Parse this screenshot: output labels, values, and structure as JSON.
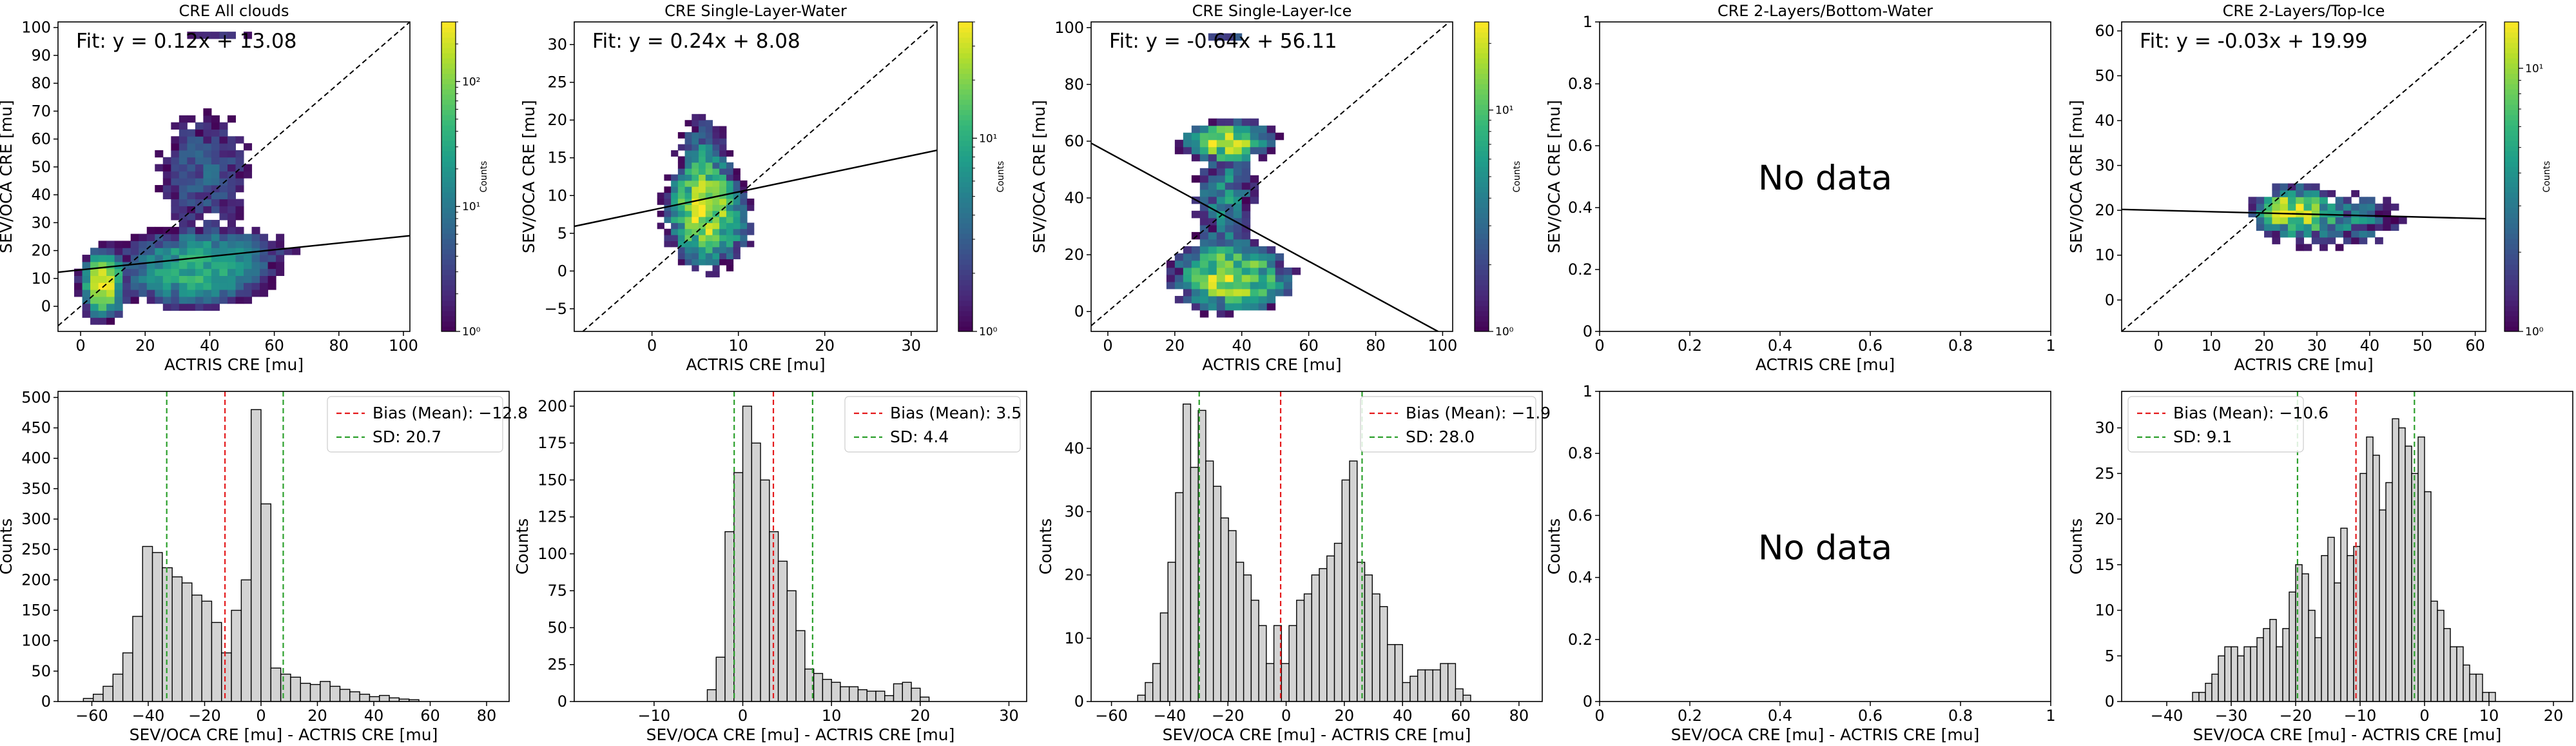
{
  "colormap": [
    "#440154",
    "#482878",
    "#3e4989",
    "#31688e",
    "#26828e",
    "#1f9e89",
    "#35b779",
    "#6ece58",
    "#b5de2b",
    "#fde725"
  ],
  "colorbar_label": "Counts",
  "legend": {
    "bias_prefix": "Bias (Mean): ",
    "sd_prefix": "SD: "
  },
  "no_data_text": "No data",
  "chart_data": [
    {
      "type": "heatmap",
      "title": "CRE All clouds",
      "xlabel": "ACTRIS CRE [mu]",
      "ylabel": "SEV/OCA CRE [mu]",
      "xlim": [
        -7,
        102
      ],
      "ylim": [
        -9,
        102
      ],
      "xticks": [
        0,
        20,
        40,
        60,
        80,
        100
      ],
      "yticks": [
        0,
        10,
        20,
        30,
        40,
        50,
        60,
        70,
        80,
        90,
        100
      ],
      "fit_text": "Fit: y = 0.12x + 13.08",
      "fit": {
        "slope": 0.12,
        "intercept": 13.08
      },
      "colorbar": {
        "scale": "log",
        "min": 1,
        "max": 300,
        "ticks": [
          {
            "v": 1,
            "t": "10⁰"
          },
          {
            "v": 10,
            "t": "10¹"
          },
          {
            "v": 100,
            "t": "10²"
          }
        ]
      },
      "bin": 2.5,
      "clusters": [
        {
          "cx": 7,
          "cy": 8,
          "rx": 4,
          "ry": 7,
          "peak": 250
        },
        {
          "cx": 35,
          "cy": 12,
          "rx": 15,
          "ry": 8,
          "peak": 40
        },
        {
          "cx": 40,
          "cy": 20,
          "rx": 18,
          "ry": 6,
          "peak": 15
        },
        {
          "cx": 38,
          "cy": 48,
          "rx": 12,
          "ry": 18,
          "peak": 6
        },
        {
          "cx": 40,
          "cy": 97,
          "rx": 16,
          "ry": 2,
          "peak": 2
        }
      ]
    },
    {
      "type": "heatmap",
      "title": "CRE Single-Layer-Water",
      "xlabel": "ACTRIS CRE [mu]",
      "ylabel": "SEV/OCA CRE [mu]",
      "xlim": [
        -9,
        33
      ],
      "ylim": [
        -8,
        33
      ],
      "xticks": [
        0,
        10,
        20,
        30
      ],
      "yticks": [
        -5,
        0,
        5,
        10,
        15,
        20,
        25,
        30
      ],
      "fit_text": "Fit: y = 0.24x + 8.08",
      "fit": {
        "slope": 0.24,
        "intercept": 8.08
      },
      "colorbar": {
        "scale": "log",
        "min": 1,
        "max": 40,
        "ticks": [
          {
            "v": 1,
            "t": "10⁰"
          },
          {
            "v": 10,
            "t": "10¹"
          }
        ]
      },
      "bin": 0.8,
      "clusters": [
        {
          "cx": 6,
          "cy": 8,
          "rx": 3,
          "ry": 5,
          "peak": 35
        },
        {
          "cx": 6,
          "cy": 15,
          "rx": 2.5,
          "ry": 5,
          "peak": 5
        },
        {
          "cx": 9,
          "cy": 5,
          "rx": 2.5,
          "ry": 4,
          "peak": 4
        }
      ]
    },
    {
      "type": "heatmap",
      "title": "CRE Single-Layer-Ice",
      "xlabel": "ACTRIS CRE [mu]",
      "ylabel": "SEV/OCA CRE [mu]",
      "xlim": [
        -5,
        103
      ],
      "ylim": [
        -7,
        102
      ],
      "xticks": [
        0,
        20,
        40,
        60,
        80,
        100
      ],
      "yticks": [
        0,
        20,
        40,
        60,
        80,
        100
      ],
      "fit_text": "Fit: y = -0.64x + 56.11",
      "fit": {
        "slope": -0.64,
        "intercept": 56.11
      },
      "colorbar": {
        "scale": "log",
        "min": 1,
        "max": 25,
        "ticks": [
          {
            "v": 1,
            "t": "10⁰"
          },
          {
            "v": 10,
            "t": "10¹"
          }
        ]
      },
      "bin": 2.5,
      "clusters": [
        {
          "cx": 37,
          "cy": 12,
          "rx": 13,
          "ry": 9,
          "peak": 20
        },
        {
          "cx": 36,
          "cy": 60,
          "rx": 10,
          "ry": 5,
          "peak": 20
        },
        {
          "cx": 35,
          "cy": 40,
          "rx": 8,
          "ry": 20,
          "peak": 5
        },
        {
          "cx": 35,
          "cy": 97,
          "rx": 12,
          "ry": 2,
          "peak": 2
        }
      ]
    },
    {
      "type": "empty",
      "title": "CRE 2-Layers/Bottom-Water",
      "xlabel": "ACTRIS CRE [mu]",
      "ylabel": "SEV/OCA CRE [mu]",
      "xlim": [
        0,
        1
      ],
      "ylim": [
        0,
        1
      ],
      "xticks": [
        0,
        0.2,
        0.4,
        0.6,
        0.8,
        1.0
      ],
      "yticks": [
        0,
        0.2,
        0.4,
        0.6,
        0.8,
        1.0
      ]
    },
    {
      "type": "heatmap",
      "title": "CRE 2-Layers/Top-Ice",
      "xlabel": "ACTRIS CRE [mu]",
      "ylabel": "SEV/OCA CRE [mu]",
      "xlim": [
        -7,
        62
      ],
      "ylim": [
        -7,
        62
      ],
      "xticks": [
        0,
        10,
        20,
        30,
        40,
        50,
        60
      ],
      "yticks": [
        0,
        10,
        20,
        30,
        40,
        50,
        60
      ],
      "fit_text": "Fit: y = -0.03x + 19.99",
      "fit": {
        "slope": -0.03,
        "intercept": 19.99
      },
      "colorbar": {
        "scale": "log",
        "min": 1,
        "max": 15,
        "ticks": [
          {
            "v": 1,
            "t": "10⁰"
          },
          {
            "v": 10,
            "t": "10¹"
          }
        ]
      },
      "bin": 1.5,
      "clusters": [
        {
          "cx": 25,
          "cy": 20,
          "rx": 5,
          "ry": 4,
          "peak": 14
        },
        {
          "cx": 33,
          "cy": 18,
          "rx": 12,
          "ry": 6,
          "peak": 4
        }
      ]
    },
    {
      "type": "bar",
      "xlabel": "SEV/OCA CRE [mu] - ACTRIS CRE [mu]",
      "ylabel": "Counts",
      "xlim": [
        -72,
        88
      ],
      "ylim": [
        0,
        510
      ],
      "xticks": [
        -60,
        -40,
        -20,
        0,
        20,
        40,
        60,
        80
      ],
      "yticks": [
        0,
        50,
        100,
        150,
        200,
        250,
        300,
        350,
        400,
        450,
        500
      ],
      "bias": -12.78,
      "sd": 20.66,
      "bin_start": -63,
      "bin_width": 3.5,
      "values": [
        5,
        12,
        25,
        45,
        80,
        140,
        255,
        245,
        220,
        205,
        195,
        175,
        165,
        130,
        80,
        150,
        200,
        480,
        325,
        55,
        45,
        40,
        30,
        28,
        33,
        25,
        20,
        16,
        12,
        8,
        10,
        6,
        4,
        3
      ]
    },
    {
      "type": "bar",
      "xlabel": "SEV/OCA CRE [mu] - ACTRIS CRE [mu]",
      "ylabel": "Counts",
      "xlim": [
        -19,
        32
      ],
      "ylim": [
        0,
        210
      ],
      "xticks": [
        -10,
        0,
        10,
        20,
        30
      ],
      "yticks": [
        0,
        25,
        50,
        75,
        100,
        125,
        150,
        175,
        200
      ],
      "bias": 3.45,
      "sd": 4.42,
      "bin_start": -4,
      "bin_width": 1,
      "values": [
        8,
        30,
        115,
        155,
        200,
        175,
        150,
        115,
        95,
        75,
        48,
        22,
        19,
        15,
        13,
        10,
        10,
        8,
        7,
        7,
        4,
        12,
        13,
        9,
        3
      ]
    },
    {
      "type": "bar",
      "xlabel": "SEV/OCA CRE [mu] - ACTRIS CRE [mu]",
      "ylabel": "Counts",
      "xlim": [
        -67,
        88
      ],
      "ylim": [
        0,
        49
      ],
      "xticks": [
        -60,
        -40,
        -20,
        0,
        20,
        40,
        60,
        80
      ],
      "yticks": [
        0,
        10,
        20,
        30,
        40
      ],
      "bias": -1.88,
      "sd": 27.98,
      "bin_start": -51,
      "bin_width": 2.6,
      "values": [
        1,
        3,
        6,
        14,
        22,
        33,
        47,
        37,
        46,
        38,
        34,
        29,
        27,
        22,
        20,
        16,
        12,
        6,
        12,
        6,
        12,
        16,
        17,
        20,
        21,
        23,
        25,
        35,
        38,
        22,
        20,
        17,
        15,
        9,
        9,
        3,
        4,
        5,
        5,
        5,
        6,
        6,
        2,
        1
      ]
    },
    {
      "type": "empty",
      "xlabel": "SEV/OCA CRE [mu] - ACTRIS CRE [mu]",
      "ylabel": "Counts",
      "xlim": [
        0,
        1
      ],
      "ylim": [
        0,
        1
      ],
      "xticks": [
        0,
        0.2,
        0.4,
        0.6,
        0.8,
        1.0
      ],
      "yticks": [
        0,
        0.2,
        0.4,
        0.6,
        0.8,
        1.0
      ]
    },
    {
      "type": "bar",
      "xlabel": "SEV/OCA CRE [mu] - ACTRIS CRE [mu]",
      "ylabel": "Counts",
      "xlim": [
        -47,
        23
      ],
      "ylim": [
        0,
        34
      ],
      "xticks": [
        -40,
        -30,
        -20,
        -10,
        0,
        10,
        20
      ],
      "yticks": [
        0,
        5,
        10,
        15,
        20,
        25,
        30
      ],
      "bias": -10.64,
      "sd": 9.07,
      "bin_start": -36,
      "bin_width": 1,
      "values": [
        1,
        1,
        2,
        3,
        5,
        6,
        6,
        5,
        6,
        6,
        7,
        8,
        9,
        6,
        8,
        12,
        15,
        14,
        10,
        7,
        16,
        18,
        13,
        19,
        16,
        17,
        25,
        29,
        27,
        21,
        24,
        31,
        30,
        28,
        25,
        29,
        23,
        11,
        10,
        8,
        6,
        6,
        4,
        3,
        3,
        1,
        1
      ]
    }
  ]
}
